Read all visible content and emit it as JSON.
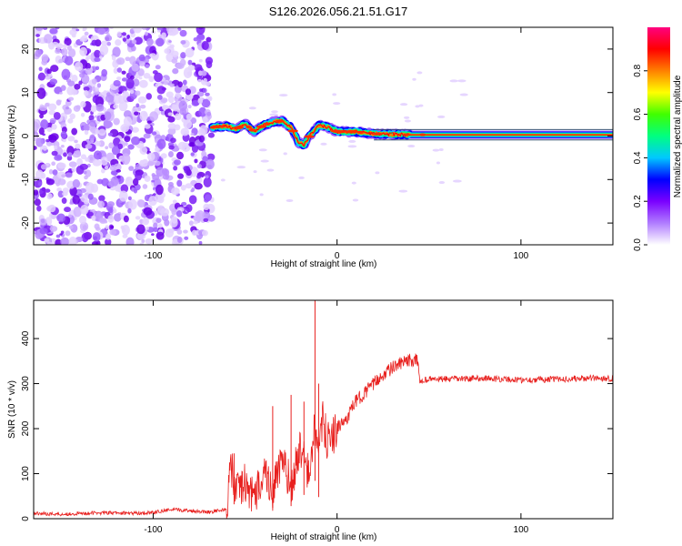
{
  "title": "S126.2026.056.21.51.G17",
  "chart_data": [
    {
      "type": "heatmap",
      "panel": "spectrogram",
      "xlabel": "Height of straight line (km)",
      "ylabel": "Frequency (Hz)",
      "xlim": [
        -165,
        150
      ],
      "ylim": [
        -25,
        25
      ],
      "xticks": [
        -100,
        0,
        100
      ],
      "yticks": [
        -20,
        -10,
        0,
        10,
        20
      ],
      "noise_region_x": [
        -165,
        -68
      ],
      "signal_start_x": -68,
      "ridge": [
        {
          "x": -68,
          "f": 2.0
        },
        {
          "x": -60,
          "f": 2.3
        },
        {
          "x": -55,
          "f": 1.6
        },
        {
          "x": -50,
          "f": 2.8
        },
        {
          "x": -45,
          "f": 1.0
        },
        {
          "x": -40,
          "f": 2.5
        },
        {
          "x": -35,
          "f": 3.2
        },
        {
          "x": -30,
          "f": 3.5
        },
        {
          "x": -25,
          "f": 2.0
        },
        {
          "x": -21,
          "f": -1.5
        },
        {
          "x": -18,
          "f": -2.0
        },
        {
          "x": -15,
          "f": 0.0
        },
        {
          "x": -10,
          "f": 2.5
        },
        {
          "x": -5,
          "f": 2.0
        },
        {
          "x": 0,
          "f": 1.0
        },
        {
          "x": 10,
          "f": 1.0
        },
        {
          "x": 20,
          "f": 0.5
        },
        {
          "x": 40,
          "f": 0.3
        },
        {
          "x": 60,
          "f": 0.3
        },
        {
          "x": 100,
          "f": 0.3
        },
        {
          "x": 150,
          "f": 0.3
        }
      ],
      "colorbar": {
        "label": "Normalized spectral amplitude",
        "range": [
          0.0,
          1.0
        ],
        "ticks": [
          "0.0",
          "0.2",
          "0.4",
          "0.6",
          "0.8"
        ],
        "tick_values": [
          0.0,
          0.2,
          0.4,
          0.6,
          0.8
        ],
        "stops": [
          "#ffffff",
          "#b07cff",
          "#7a00ff",
          "#0000ff",
          "#00c8ff",
          "#00ff80",
          "#40ff00",
          "#ffff00",
          "#ff8000",
          "#ff0000",
          "#ff0080"
        ]
      }
    },
    {
      "type": "line",
      "panel": "snr",
      "xlabel": "Height of straight line (km)",
      "ylabel": "SNR (10 * v/v)",
      "xlim": [
        -165,
        150
      ],
      "ylim": [
        0,
        485
      ],
      "xticks": [
        -100,
        0,
        100
      ],
      "yticks": [
        0,
        100,
        200,
        300,
        400
      ],
      "series": [
        {
          "name": "SNR",
          "color": "#e8201e",
          "x": [
            -165,
            -150,
            -130,
            -110,
            -100,
            -90,
            -80,
            -70,
            -60,
            -58,
            -55,
            -50,
            -45,
            -40,
            -35,
            -30,
            -25,
            -20,
            -15,
            -12,
            -10,
            -8,
            -5,
            0,
            5,
            10,
            15,
            20,
            25,
            30,
            35,
            40,
            44,
            45,
            50,
            60,
            80,
            100,
            120,
            140,
            150
          ],
          "y": [
            12,
            10,
            13,
            12,
            14,
            20,
            18,
            15,
            20,
            120,
            60,
            80,
            40,
            110,
            60,
            130,
            70,
            160,
            90,
            210,
            120,
            220,
            170,
            200,
            220,
            260,
            280,
            300,
            320,
            335,
            345,
            352,
            350,
            305,
            310,
            310,
            312,
            308,
            310,
            312,
            312
          ],
          "spikes": [
            {
              "x": -56,
              "y": 145
            },
            {
              "x": -35,
              "y": 250
            },
            {
              "x": -25,
              "y": 275
            },
            {
              "x": -18,
              "y": 260
            },
            {
              "x": -12,
              "y": 485
            },
            {
              "x": -10,
              "y": 300
            }
          ]
        }
      ]
    }
  ]
}
